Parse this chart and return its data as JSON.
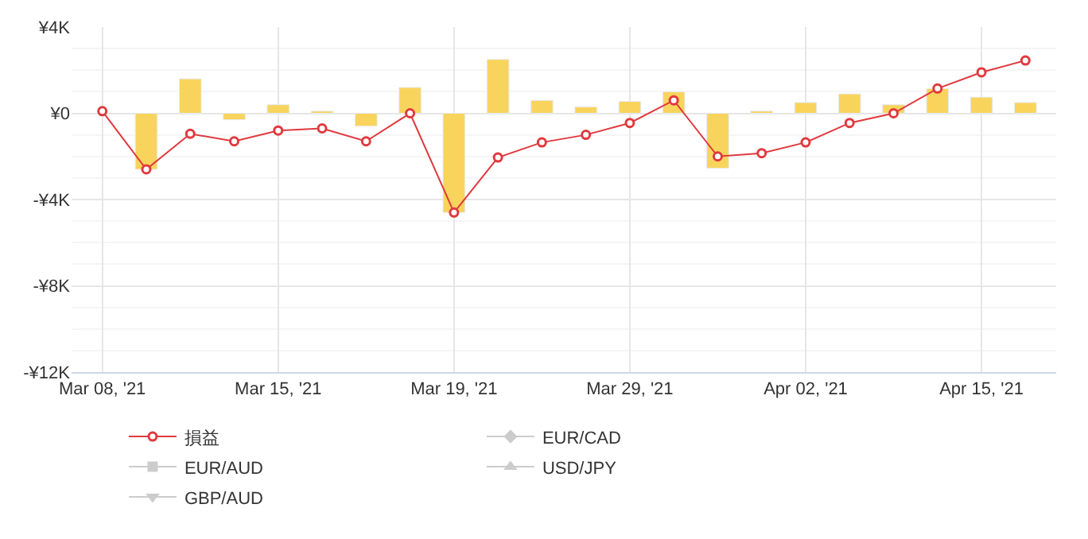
{
  "chart_data": {
    "type": "bar",
    "categories": [
      "Mar 08, '21",
      null,
      null,
      null,
      "Mar 15, '21",
      null,
      null,
      null,
      "Mar 19, '21",
      null,
      null,
      null,
      "Mar 29, '21",
      null,
      null,
      null,
      "Apr 02, '21",
      null,
      null,
      null,
      "Apr 15, '21",
      null
    ],
    "series": [
      {
        "color": "#f9d45c",
        "values": [
          null,
          -2600,
          1600,
          -300,
          400,
          100,
          -600,
          1200,
          -4600,
          2500,
          600,
          300,
          550,
          1000,
          -2550,
          100,
          500,
          900,
          400,
          1150,
          750,
          500
        ]
      },
      {
        "type": "line",
        "name": "損益",
        "color": "#e0393e",
        "marker": "circle",
        "values": [
          100,
          -2600,
          -950,
          -1300,
          -800,
          -700,
          -1300,
          0,
          -4600,
          -2050,
          -1350,
          -1000,
          -450,
          600,
          -2000,
          -1850,
          -1350,
          -450,
          0,
          1150,
          1900,
          2450
        ]
      },
      {
        "type": "line",
        "name": "EUR/CAD",
        "color": "#cccccc",
        "marker": "diamond",
        "values": [
          null,
          null,
          null,
          null,
          null,
          null,
          null,
          null,
          null,
          null,
          null,
          null,
          null,
          null,
          null,
          null,
          null,
          null,
          null,
          null,
          null,
          null
        ]
      },
      {
        "type": "line",
        "name": "EUR/AUD",
        "color": "#cccccc",
        "marker": "square",
        "values": [
          null,
          null,
          null,
          null,
          null,
          null,
          null,
          null,
          null,
          null,
          null,
          null,
          null,
          null,
          null,
          null,
          null,
          null,
          null,
          null,
          null,
          null
        ]
      },
      {
        "type": "line",
        "name": "USD/JPY",
        "color": "#cccccc",
        "marker": "triangle",
        "values": [
          null,
          null,
          null,
          null,
          null,
          null,
          null,
          null,
          null,
          null,
          null,
          null,
          null,
          null,
          null,
          null,
          null,
          null,
          null,
          null,
          null,
          null
        ]
      },
      {
        "type": "line",
        "name": "GBP/AUD",
        "color": "#cccccc",
        "marker": "triangle-down",
        "values": [
          null,
          null,
          null,
          null,
          null,
          null,
          null,
          null,
          null,
          null,
          null,
          null,
          null,
          null,
          null,
          null,
          null,
          null,
          null,
          null,
          null,
          null
        ]
      }
    ],
    "ylim": [
      -12000,
      4000
    ],
    "yticks": [
      {
        "value": -12000,
        "label": "-¥12K"
      },
      {
        "value": -8000,
        "label": "-¥8K"
      },
      {
        "value": -4000,
        "label": "-¥4K"
      },
      {
        "value": 0,
        "label": "¥0"
      },
      {
        "value": 4000,
        "label": "¥4K"
      }
    ],
    "grid": true,
    "legend": "bottom"
  }
}
